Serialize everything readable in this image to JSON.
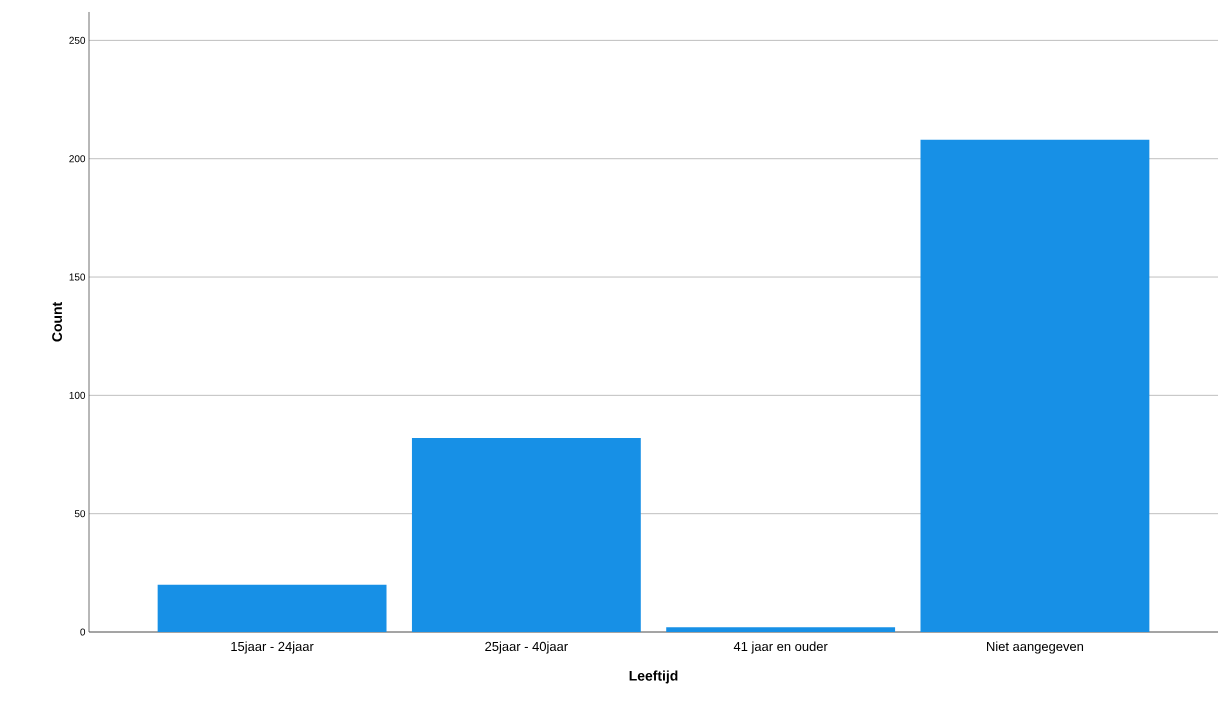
{
  "chart_data": {
    "type": "bar",
    "xlabel": "Leeftijd",
    "ylabel": "Count",
    "categories": [
      "15jaar - 24jaar",
      "25jaar - 40jaar",
      "41 jaar en ouder",
      "Niet aangegeven"
    ],
    "values": [
      20,
      82,
      2,
      208
    ],
    "color": "#1790e6",
    "ylim": [
      0,
      262
    ],
    "yticks": [
      0,
      50,
      100,
      150,
      200,
      250
    ],
    "grid": "y"
  }
}
